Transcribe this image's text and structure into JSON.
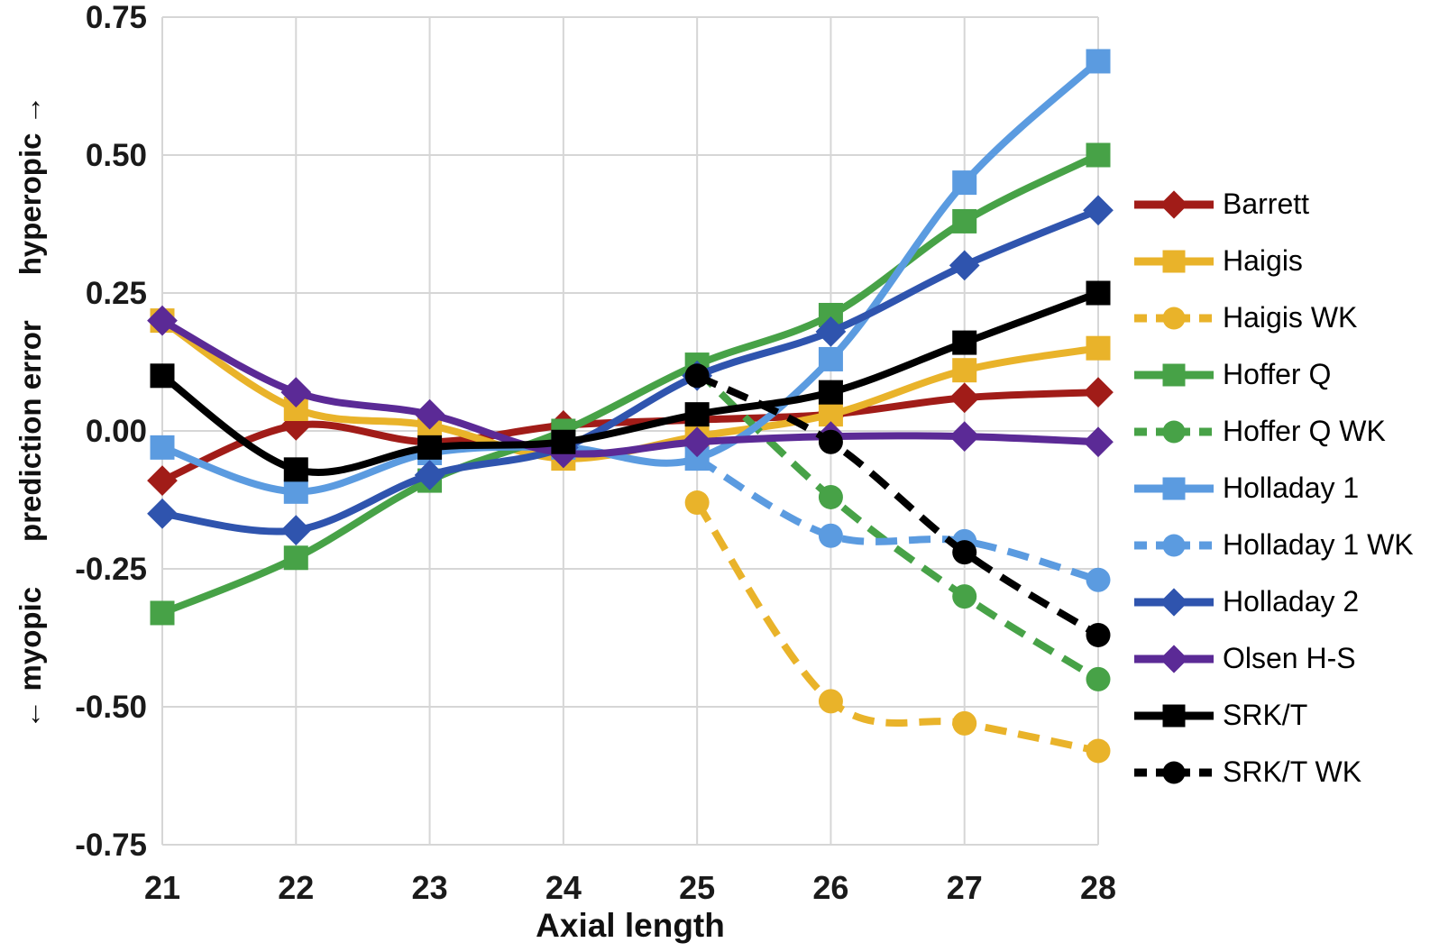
{
  "chart_data": {
    "type": "line",
    "title": "",
    "xlabel": "Axial length",
    "ylabel_parts": {
      "bottom": "← myopic",
      "middle": "prediction error",
      "top": "hyperopic →"
    },
    "x": [
      21,
      22,
      23,
      24,
      25,
      26,
      27,
      28
    ],
    "x_tick_labels": [
      "21",
      "22",
      "23",
      "24",
      "25",
      "26",
      "27",
      "28"
    ],
    "y_ticks": [
      0.75,
      0.5,
      0.25,
      0.0,
      -0.25,
      -0.5,
      -0.75
    ],
    "y_tick_labels": [
      "0.75",
      "0.50",
      "0.25",
      "0.00",
      "-0.25",
      "-0.50",
      "-0.75"
    ],
    "xlim": [
      21,
      28
    ],
    "ylim": [
      -0.75,
      0.75
    ],
    "grid": true,
    "legend_position": "right",
    "series": [
      {
        "name": "Barrett",
        "color": "#A11C18",
        "marker": "diamond",
        "line": "solid",
        "values": [
          -0.09,
          0.01,
          -0.02,
          0.01,
          0.02,
          0.03,
          0.06,
          0.07
        ]
      },
      {
        "name": "Haigis",
        "color": "#E9B32A",
        "marker": "square",
        "line": "solid",
        "values": [
          0.2,
          0.04,
          0.01,
          -0.05,
          -0.01,
          0.03,
          0.11,
          0.15
        ]
      },
      {
        "name": "Haigis WK",
        "color": "#E9B32A",
        "marker": "circle",
        "line": "dashed",
        "values": [
          null,
          null,
          null,
          null,
          -0.13,
          -0.49,
          -0.53,
          -0.58
        ]
      },
      {
        "name": "Hoffer Q",
        "color": "#47A247",
        "marker": "square",
        "line": "solid",
        "values": [
          -0.33,
          -0.23,
          -0.09,
          0.0,
          0.12,
          0.21,
          0.38,
          0.5
        ]
      },
      {
        "name": "Hoffer Q WK",
        "color": "#47A247",
        "marker": "circle",
        "line": "dashed",
        "values": [
          null,
          null,
          null,
          null,
          0.11,
          -0.12,
          -0.3,
          -0.45
        ]
      },
      {
        "name": "Holladay 1",
        "color": "#5B9BE0",
        "marker": "square",
        "line": "solid",
        "values": [
          -0.03,
          -0.11,
          -0.04,
          -0.03,
          -0.05,
          0.13,
          0.45,
          0.67
        ]
      },
      {
        "name": "Holladay 1 WK",
        "color": "#5B9BE0",
        "marker": "circle",
        "line": "dashed",
        "values": [
          null,
          null,
          null,
          null,
          -0.05,
          -0.19,
          -0.2,
          -0.27
        ]
      },
      {
        "name": "Holladay 2",
        "color": "#2F54AE",
        "marker": "diamond",
        "line": "solid",
        "values": [
          -0.15,
          -0.18,
          -0.08,
          -0.03,
          0.1,
          0.18,
          0.3,
          0.4
        ]
      },
      {
        "name": "Olsen H-S",
        "color": "#5B2A96",
        "marker": "diamond",
        "line": "solid",
        "values": [
          0.2,
          0.07,
          0.03,
          -0.04,
          -0.02,
          -0.01,
          -0.01,
          -0.02
        ]
      },
      {
        "name": "SRK/T",
        "color": "#000000",
        "marker": "square",
        "line": "solid",
        "values": [
          0.1,
          -0.07,
          -0.03,
          -0.02,
          0.03,
          0.07,
          0.16,
          0.25
        ]
      },
      {
        "name": "SRK/T WK",
        "color": "#000000",
        "marker": "circle",
        "line": "dashed",
        "values": [
          null,
          null,
          null,
          null,
          0.1,
          -0.02,
          -0.22,
          -0.37
        ]
      }
    ]
  },
  "colors": {
    "grid": "#D6D6D6",
    "tick_text": "#1A1A1A",
    "background": "#FFFFFF"
  }
}
